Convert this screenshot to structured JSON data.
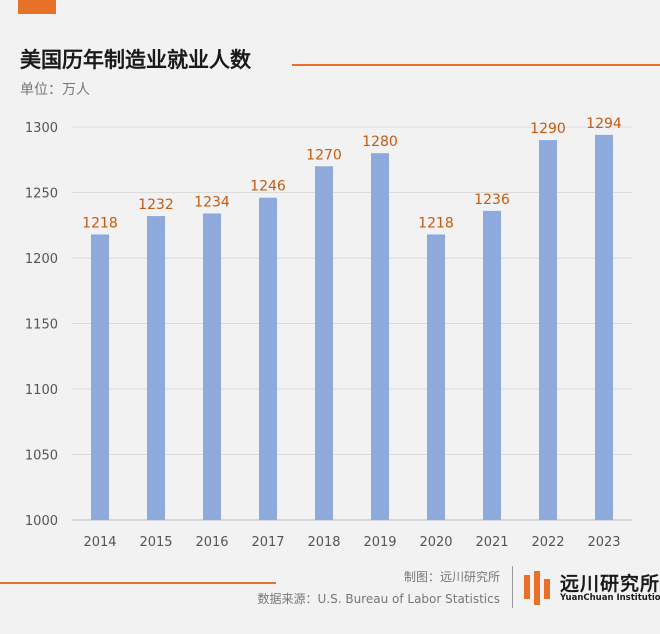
{
  "header": {
    "title": "美国历年制造业就业人数",
    "unit": "单位：万人"
  },
  "footer": {
    "credit": "制图：远川研究所",
    "source": "数据来源：U.S. Bureau of Labor Statistics",
    "logo_cn": "远川研究所",
    "logo_en": "YuanChuan Institution"
  },
  "colors": {
    "bar": "#8ea9dc",
    "data_label": "#c55a11",
    "accent": "#e8712a"
  },
  "chart_data": {
    "type": "bar",
    "categories": [
      "2014",
      "2015",
      "2016",
      "2017",
      "2018",
      "2019",
      "2020",
      "2021",
      "2022",
      "2023"
    ],
    "values": [
      1218,
      1232,
      1234,
      1246,
      1270,
      1280,
      1218,
      1236,
      1290,
      1294
    ],
    "ylim": [
      1000,
      1300
    ],
    "yticks": [
      1000,
      1050,
      1100,
      1150,
      1200,
      1250,
      1300
    ],
    "grid": true,
    "legend": "none"
  }
}
